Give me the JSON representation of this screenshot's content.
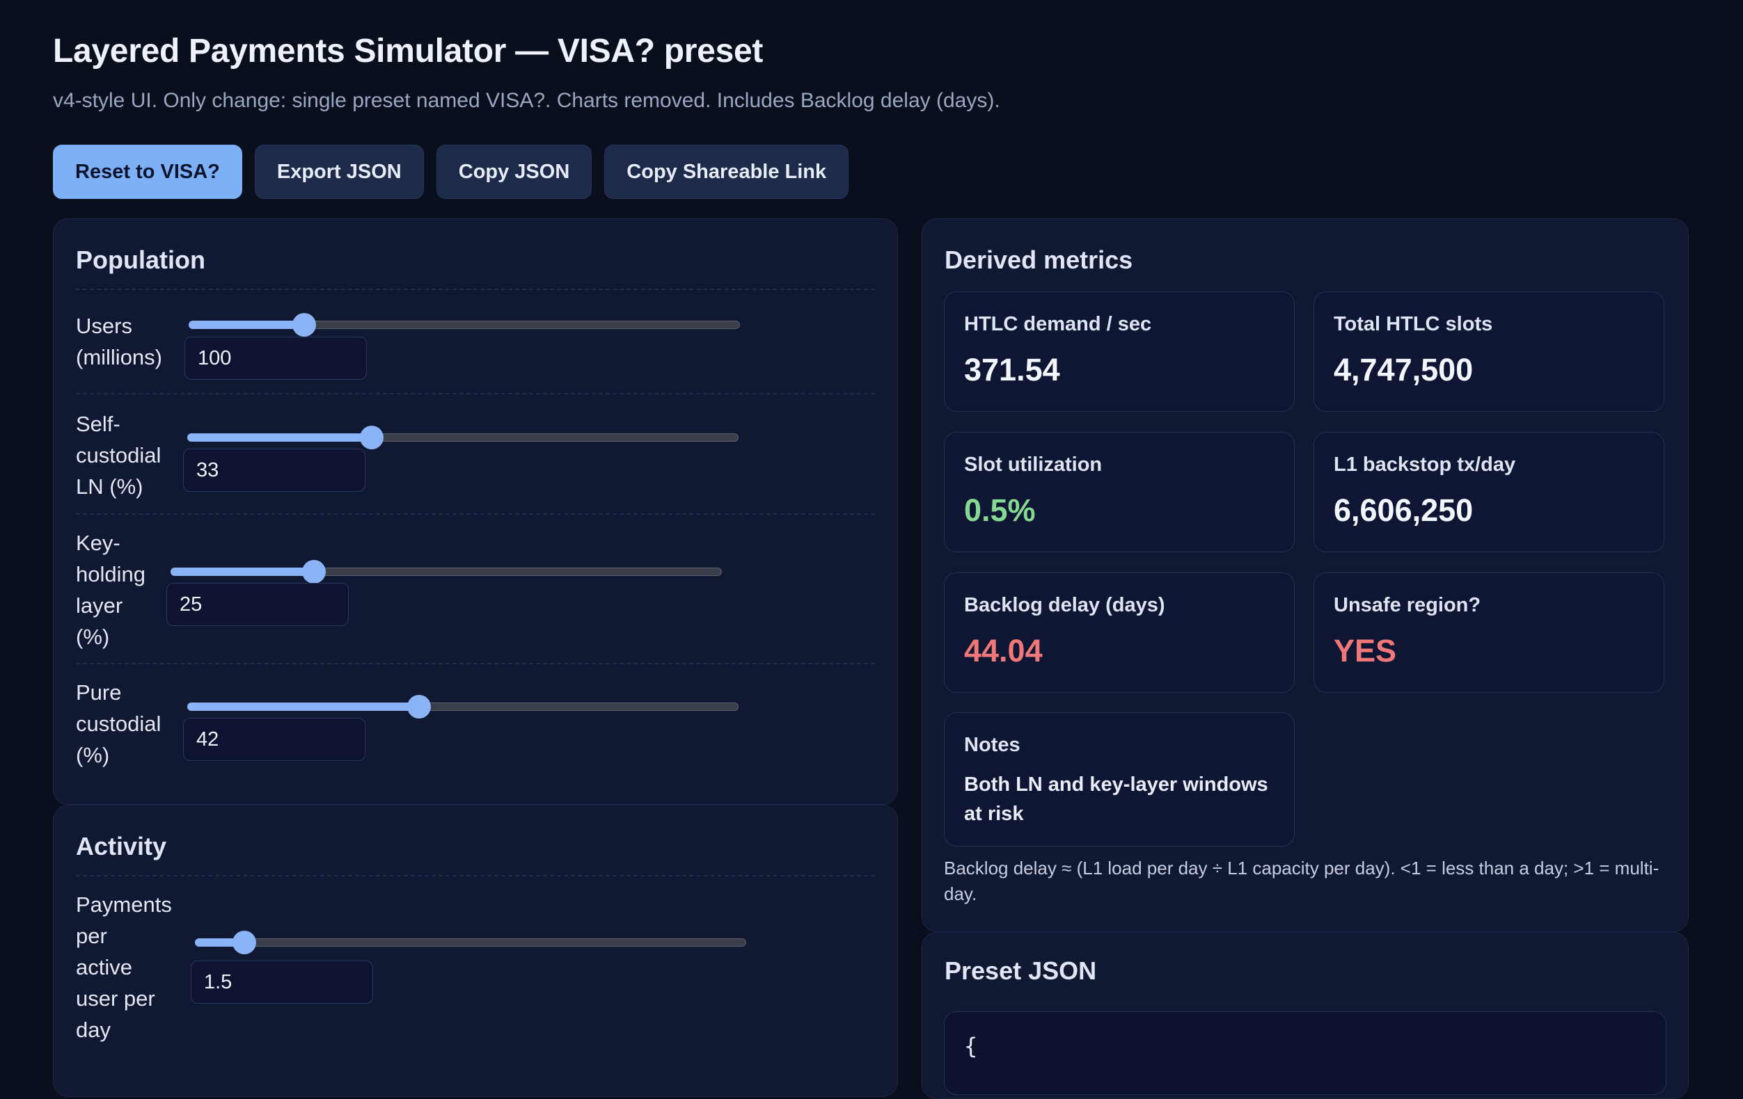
{
  "header": {
    "title": "Layered Payments Simulator — VISA? preset",
    "subtitle": "v4-style UI. Only change: single preset named VISA?. Charts removed. Includes Backlog delay (days)."
  },
  "toolbar": {
    "reset": "Reset to VISA?",
    "export": "Export JSON",
    "copy": "Copy JSON",
    "share": "Copy Shareable Link"
  },
  "population": {
    "title": "Population",
    "rows": [
      {
        "label": [
          "Users",
          "(millions)"
        ],
        "value": "100",
        "slider_fraction": 0.21
      },
      {
        "label": [
          "Self-",
          "custodial",
          "LN (%)"
        ],
        "value": "33",
        "slider_fraction": 0.335
      },
      {
        "label": [
          "Key-",
          "holding",
          "layer",
          "(%)"
        ],
        "value": "25",
        "slider_fraction": 0.26
      },
      {
        "label": [
          "Pure",
          "custodial",
          "(%)"
        ],
        "value": "42",
        "slider_fraction": 0.42
      }
    ]
  },
  "activity": {
    "title": "Activity",
    "rows": [
      {
        "label": [
          "Payments",
          "per",
          "active",
          "user per",
          "day"
        ],
        "value": "1.5",
        "slider_fraction": 0.09
      }
    ]
  },
  "metrics": {
    "title": "Derived metrics",
    "htlc_demand": {
      "label": "HTLC demand / sec",
      "value": "371.54"
    },
    "total_slots": {
      "label": "Total HTLC slots",
      "value": "4,747,500"
    },
    "slot_util": {
      "label": "Slot utilization",
      "value": "0.5%"
    },
    "l1_backstop": {
      "label": "L1 backstop tx/day",
      "value": "6,606,250"
    },
    "backlog": {
      "label": "Backlog delay (days)",
      "value": "44.04"
    },
    "unsafe": {
      "label": "Unsafe region?",
      "value": "YES"
    },
    "notes": {
      "label": "Notes",
      "value": "Both LN and key-layer windows at risk"
    },
    "footnote": "Backlog delay ≈ (L1 load per day ÷ L1 capacity per day). <1 = less than a day; >1 = multi-day."
  },
  "preset_json": {
    "title": "Preset JSON",
    "first_line": "{"
  },
  "colors": {
    "accent": "#7eb0f5",
    "good": "#86d993",
    "bad": "#f07878"
  }
}
